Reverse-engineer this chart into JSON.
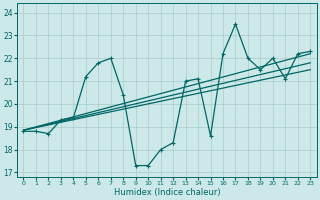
{
  "xlabel": "Humidex (Indice chaleur)",
  "bg_color": "#cce8e8",
  "line_color": "#006666",
  "grid_color": "#aacccc",
  "xlim": [
    -0.5,
    23.5
  ],
  "ylim": [
    16.8,
    24.4
  ],
  "yticks": [
    17,
    18,
    19,
    20,
    21,
    22,
    23,
    24
  ],
  "xticks": [
    0,
    1,
    2,
    3,
    4,
    5,
    6,
    7,
    8,
    9,
    10,
    11,
    12,
    13,
    14,
    15,
    16,
    17,
    18,
    19,
    20,
    21,
    22,
    23
  ],
  "series": [
    {
      "x": [
        0,
        1,
        2,
        3,
        4,
        5,
        6,
        7,
        8,
        9,
        10,
        11,
        12,
        13,
        14,
        15,
        16,
        17,
        18,
        19,
        20,
        21,
        22,
        23
      ],
      "y": [
        18.8,
        18.8,
        18.7,
        19.3,
        19.4,
        21.2,
        21.8,
        22.0,
        20.4,
        17.3,
        17.3,
        18.0,
        18.3,
        21.0,
        21.1,
        18.6,
        22.2,
        23.5,
        22.0,
        21.5,
        22.0,
        21.1,
        22.2,
        22.3
      ],
      "lw": 0.9,
      "marker": true
    },
    {
      "x": [
        0,
        23
      ],
      "y": [
        18.85,
        22.2
      ],
      "lw": 0.9,
      "marker": false
    },
    {
      "x": [
        0,
        23
      ],
      "y": [
        18.85,
        21.8
      ],
      "lw": 0.9,
      "marker": false
    },
    {
      "x": [
        0,
        23
      ],
      "y": [
        18.85,
        21.5
      ],
      "lw": 0.9,
      "marker": false
    }
  ]
}
